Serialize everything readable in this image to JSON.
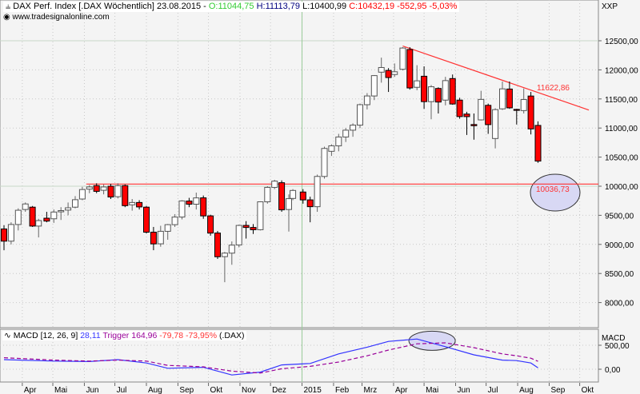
{
  "header": {
    "symbol_icon": "candlestick-icon",
    "title": "DAX Perf. Index [.DAX Wöchentlich] 23.08.2015 -",
    "open": "O:11044,75",
    "high": "H:11113,79",
    "low": "L:10400,99",
    "close": "C:10432,19 -552,95 -5,03%",
    "website": "www.tradesignalonline.com",
    "corner_label": "XXP"
  },
  "macd_header": {
    "label": "MACD [12, 26, 9]",
    "macd_value": "28,11",
    "trigger": "Trigger 164,96",
    "diff": "-79,78 -73,95%",
    "symbol": "(.DAX)"
  },
  "colors": {
    "up": "#ffffff",
    "down": "#ff0000",
    "macd": "#3333ff",
    "trigger": "#990099",
    "trendline": "#ff3333",
    "ellipse_fill": "#d8d8f4",
    "year_line": "#99cc99"
  },
  "chart_data": [
    {
      "type": "candlestick",
      "ylim": [
        7700,
        12900
      ],
      "yticks": [
        "8000,00",
        "8500,00",
        "9000,00",
        "9500,00",
        "10000,00",
        "10500,00",
        "11000,00",
        "11500,00",
        "12000,00",
        "12500,00"
      ],
      "ytick_values": [
        8000,
        8500,
        9000,
        9500,
        10000,
        10500,
        11000,
        11500,
        12000,
        12500
      ],
      "xlabels": [
        {
          "date": "2014-04-01",
          "label": "Apr"
        },
        {
          "date": "2014-05-01",
          "label": "Mai"
        },
        {
          "date": "2014-06-01",
          "label": "Jun"
        },
        {
          "date": "2014-07-01",
          "label": "Jul"
        },
        {
          "date": "2014-08-01",
          "label": "Aug"
        },
        {
          "date": "2014-09-01",
          "label": "Sep"
        },
        {
          "date": "2014-10-01",
          "label": "Okt"
        },
        {
          "date": "2014-11-01",
          "label": "Nov"
        },
        {
          "date": "2014-12-01",
          "label": "Dez"
        },
        {
          "date": "2015-01-01",
          "label": "2015"
        },
        {
          "date": "2015-02-01",
          "label": "Feb"
        },
        {
          "date": "2015-03-01",
          "label": "Mrz"
        },
        {
          "date": "2015-04-01",
          "label": "Apr"
        },
        {
          "date": "2015-05-01",
          "label": "Mai"
        },
        {
          "date": "2015-06-01",
          "label": "Jun"
        },
        {
          "date": "2015-07-01",
          "label": "Jul"
        },
        {
          "date": "2015-08-01",
          "label": "Aug"
        },
        {
          "date": "2015-09-01",
          "label": "Sep"
        },
        {
          "date": "2015-10-01",
          "label": "Okt"
        }
      ],
      "xlim": [
        "2014-03-10",
        "2015-10-20"
      ],
      "candles": [
        [
          "2014-03-14",
          9265,
          9330,
          8900,
          9056
        ],
        [
          "2014-03-21",
          9056,
          9380,
          9000,
          9342
        ],
        [
          "2014-03-28",
          9342,
          9620,
          9240,
          9587
        ],
        [
          "2014-04-04",
          9600,
          9720,
          9560,
          9695
        ],
        [
          "2014-04-11",
          9640,
          9660,
          9300,
          9315
        ],
        [
          "2014-04-17",
          9315,
          9440,
          9120,
          9409
        ],
        [
          "2014-04-25",
          9450,
          9560,
          9380,
          9401
        ],
        [
          "2014-05-02",
          9440,
          9600,
          9370,
          9556
        ],
        [
          "2014-05-09",
          9560,
          9640,
          9420,
          9581
        ],
        [
          "2014-05-16",
          9590,
          9720,
          9500,
          9629
        ],
        [
          "2014-05-23",
          9640,
          9830,
          9620,
          9768
        ],
        [
          "2014-05-30",
          9780,
          9990,
          9760,
          9943
        ],
        [
          "2014-06-06",
          9950,
          10020,
          9880,
          9987
        ],
        [
          "2014-06-13",
          10010,
          10050,
          9880,
          9912
        ],
        [
          "2014-06-20",
          9930,
          10030,
          9860,
          9987
        ],
        [
          "2014-06-27",
          10000,
          10040,
          9780,
          9815
        ],
        [
          "2014-07-04",
          9820,
          10050,
          9790,
          10009
        ],
        [
          "2014-07-11",
          10010,
          10030,
          9640,
          9666
        ],
        [
          "2014-07-18",
          9680,
          9780,
          9580,
          9720
        ],
        [
          "2014-07-25",
          9720,
          9760,
          9600,
          9644
        ],
        [
          "2014-08-01",
          9640,
          9660,
          9190,
          9210
        ],
        [
          "2014-08-08",
          9210,
          9300,
          8900,
          9009
        ],
        [
          "2014-08-15",
          9010,
          9320,
          8960,
          9225
        ],
        [
          "2014-08-22",
          9225,
          9350,
          9080,
          9339
        ],
        [
          "2014-08-29",
          9339,
          9520,
          9300,
          9470
        ],
        [
          "2014-09-05",
          9470,
          9760,
          9430,
          9747
        ],
        [
          "2014-09-12",
          9745,
          9800,
          9640,
          9691
        ],
        [
          "2014-09-19",
          9691,
          9890,
          9600,
          9799
        ],
        [
          "2014-09-26",
          9800,
          9840,
          9440,
          9490
        ],
        [
          "2014-10-03",
          9490,
          9510,
          9150,
          9195
        ],
        [
          "2014-10-10",
          9195,
          9230,
          8750,
          8788
        ],
        [
          "2014-10-17",
          8790,
          8870,
          8350,
          8850
        ],
        [
          "2014-10-24",
          8850,
          9050,
          8650,
          8987
        ],
        [
          "2014-10-31",
          8990,
          9340,
          8950,
          9326
        ],
        [
          "2014-11-07",
          9326,
          9400,
          9100,
          9291
        ],
        [
          "2014-11-14",
          9291,
          9350,
          9180,
          9252
        ],
        [
          "2014-11-21",
          9252,
          9740,
          9240,
          9732
        ],
        [
          "2014-11-28",
          9732,
          10000,
          9700,
          9980
        ],
        [
          "2014-12-05",
          9980,
          10110,
          9950,
          10087
        ],
        [
          "2014-12-12",
          10060,
          10100,
          9560,
          9594
        ],
        [
          "2014-12-19",
          9600,
          9860,
          9220,
          9786
        ],
        [
          "2014-12-23",
          9790,
          9950,
          9760,
          9927
        ],
        [
          "2015-01-02",
          9900,
          9950,
          9700,
          9765
        ],
        [
          "2015-01-09",
          9765,
          9820,
          9380,
          9648
        ],
        [
          "2015-01-16",
          9648,
          10200,
          9560,
          10168
        ],
        [
          "2015-01-23",
          10168,
          10680,
          10130,
          10649
        ],
        [
          "2015-01-30",
          10600,
          10720,
          10520,
          10694
        ],
        [
          "2015-02-06",
          10694,
          10900,
          10600,
          10846
        ],
        [
          "2015-02-13",
          10846,
          11000,
          10760,
          10963
        ],
        [
          "2015-02-20",
          10963,
          11080,
          10850,
          11050
        ],
        [
          "2015-02-27",
          11050,
          11420,
          11000,
          11401
        ],
        [
          "2015-03-06",
          11401,
          11600,
          11320,
          11551
        ],
        [
          "2015-03-13",
          11551,
          11910,
          11480,
          11901
        ],
        [
          "2015-03-20",
          11960,
          12210,
          11780,
          12040
        ],
        [
          "2015-03-27",
          11990,
          12030,
          11620,
          11868
        ],
        [
          "2015-04-02",
          11920,
          12110,
          11880,
          11967
        ],
        [
          "2015-04-10",
          12010,
          12390,
          11990,
          12375
        ],
        [
          "2015-04-17",
          12350,
          12390,
          11660,
          11689
        ],
        [
          "2015-04-24",
          11700,
          12080,
          11650,
          11811
        ],
        [
          "2015-05-01",
          11890,
          12060,
          11330,
          11454
        ],
        [
          "2015-05-08",
          11454,
          11740,
          11150,
          11709
        ],
        [
          "2015-05-15",
          11680,
          11700,
          11250,
          11447
        ],
        [
          "2015-05-22",
          11480,
          11880,
          11390,
          11815
        ],
        [
          "2015-05-29",
          11850,
          11920,
          11400,
          11413
        ],
        [
          "2015-06-05",
          11480,
          11520,
          11160,
          11197
        ],
        [
          "2015-06-12",
          11240,
          11280,
          10880,
          11196
        ],
        [
          "2015-06-19",
          11060,
          11250,
          10800,
          11040
        ],
        [
          "2015-06-26",
          11140,
          11640,
          11130,
          11492
        ],
        [
          "2015-07-03",
          11390,
          11420,
          10900,
          11059
        ],
        [
          "2015-07-10",
          10820,
          11340,
          10650,
          11316
        ],
        [
          "2015-07-17",
          11330,
          11800,
          11310,
          11673
        ],
        [
          "2015-07-24",
          11670,
          11800,
          11330,
          11347
        ],
        [
          "2015-07-31",
          11320,
          11330,
          11060,
          11308
        ],
        [
          "2015-08-07",
          11300,
          11680,
          11250,
          11490
        ],
        [
          "2015-08-14",
          11550,
          11620,
          10890,
          10985
        ],
        [
          "2015-08-21",
          11044.75,
          11113.79,
          10400.99,
          10432.19
        ]
      ],
      "annotations": {
        "trendline": {
          "from": [
            "2015-04-10",
            12410
          ],
          "to": [
            "2015-10-10",
            11310
          ],
          "label": "11622,86"
        },
        "support_line": {
          "from_date": "2014-06-06",
          "value": 10036.73,
          "label": "10036,73"
        },
        "year_separator_date": "2015-01-01"
      }
    },
    {
      "type": "line",
      "title": "MACD",
      "ylim": [
        -230,
        780
      ],
      "yticks": [
        "0,00",
        "500,00"
      ],
      "ytick_values": [
        0,
        500
      ],
      "series": [
        {
          "name": "MACD",
          "style": "solid",
          "points": [
            [
              "2014-03-14",
              200
            ],
            [
              "2014-05-02",
              170
            ],
            [
              "2014-06-06",
              160
            ],
            [
              "2014-07-04",
              200
            ],
            [
              "2014-08-01",
              130
            ],
            [
              "2014-08-22",
              20
            ],
            [
              "2014-09-26",
              40
            ],
            [
              "2014-10-24",
              -120
            ],
            [
              "2014-11-21",
              -60
            ],
            [
              "2014-12-12",
              90
            ],
            [
              "2015-01-09",
              120
            ],
            [
              "2015-02-06",
              320
            ],
            [
              "2015-03-06",
              460
            ],
            [
              "2015-03-27",
              580
            ],
            [
              "2015-04-24",
              630
            ],
            [
              "2015-05-22",
              470
            ],
            [
              "2015-06-19",
              300
            ],
            [
              "2015-07-17",
              190
            ],
            [
              "2015-07-31",
              180
            ],
            [
              "2015-08-14",
              130
            ],
            [
              "2015-08-21",
              28.11
            ]
          ]
        },
        {
          "name": "Trigger",
          "style": "dashed",
          "points": [
            [
              "2014-03-14",
              240
            ],
            [
              "2014-05-02",
              190
            ],
            [
              "2014-06-06",
              170
            ],
            [
              "2014-07-04",
              190
            ],
            [
              "2014-08-01",
              170
            ],
            [
              "2014-08-22",
              80
            ],
            [
              "2014-09-26",
              50
            ],
            [
              "2014-10-24",
              -40
            ],
            [
              "2014-11-21",
              -80
            ],
            [
              "2014-12-12",
              10
            ],
            [
              "2015-01-09",
              60
            ],
            [
              "2015-02-06",
              150
            ],
            [
              "2015-03-06",
              280
            ],
            [
              "2015-03-27",
              400
            ],
            [
              "2015-04-24",
              530
            ],
            [
              "2015-05-22",
              550
            ],
            [
              "2015-06-19",
              450
            ],
            [
              "2015-07-17",
              320
            ],
            [
              "2015-07-31",
              280
            ],
            [
              "2015-08-14",
              230
            ],
            [
              "2015-08-21",
              164.96
            ]
          ]
        }
      ],
      "annotation": {
        "type": "ellipse",
        "center_date": "2015-05-01",
        "center_value": 560
      }
    }
  ]
}
